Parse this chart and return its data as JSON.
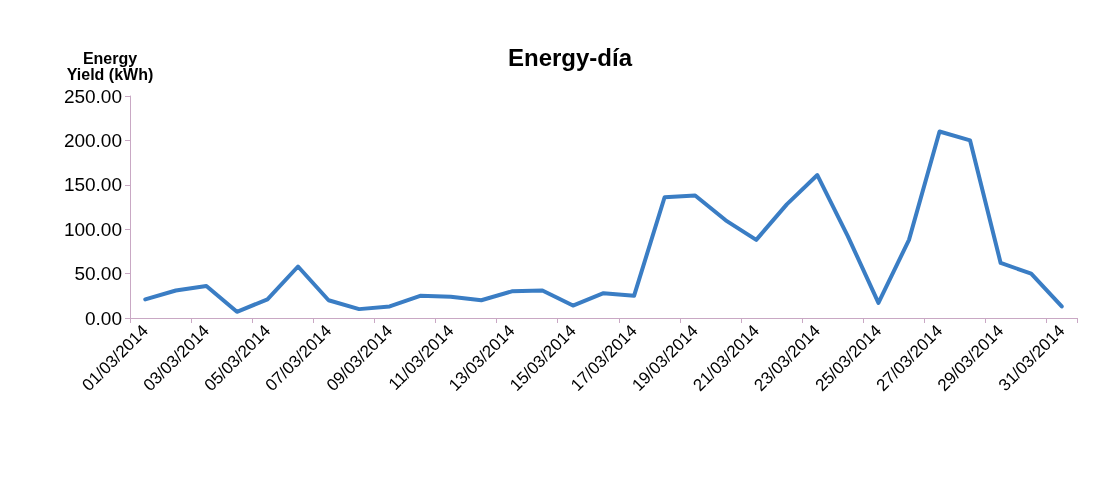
{
  "chart_data": {
    "type": "line",
    "title": "Energy-día",
    "ylabel": "Energy\nYield (kWh)",
    "categories": [
      "01/03/2014",
      null,
      "03/03/2014",
      null,
      "05/03/2014",
      null,
      "07/03/2014",
      null,
      "09/03/2014",
      null,
      "11/03/2014",
      null,
      "13/03/2014",
      null,
      "15/03/2014",
      null,
      "17/03/2014",
      null,
      "19/03/2014",
      null,
      "21/03/2014",
      null,
      "23/03/2014",
      null,
      "25/03/2014",
      null,
      "27/03/2014",
      null,
      "29/03/2014",
      null,
      "31/03/2014"
    ],
    "series": [
      {
        "color": "#3a7dc4",
        "values": [
          21,
          31,
          36,
          7,
          21,
          58,
          20,
          10,
          13,
          25,
          24,
          20,
          30,
          31,
          14,
          28,
          25,
          136,
          138,
          110,
          88,
          128,
          161,
          92,
          17,
          88,
          210,
          200,
          62,
          50,
          13
        ]
      }
    ],
    "ylim": [
      0,
      250
    ],
    "yticks": [
      {
        "value": 0,
        "label": "0.00"
      },
      {
        "value": 50,
        "label": "50.00"
      },
      {
        "value": 100,
        "label": "100.00"
      },
      {
        "value": 150,
        "label": "150.00"
      },
      {
        "value": 200,
        "label": "200.00"
      },
      {
        "value": 250,
        "label": "250.00"
      }
    ],
    "grid": false,
    "marker": "none",
    "line_style": "solid"
  }
}
